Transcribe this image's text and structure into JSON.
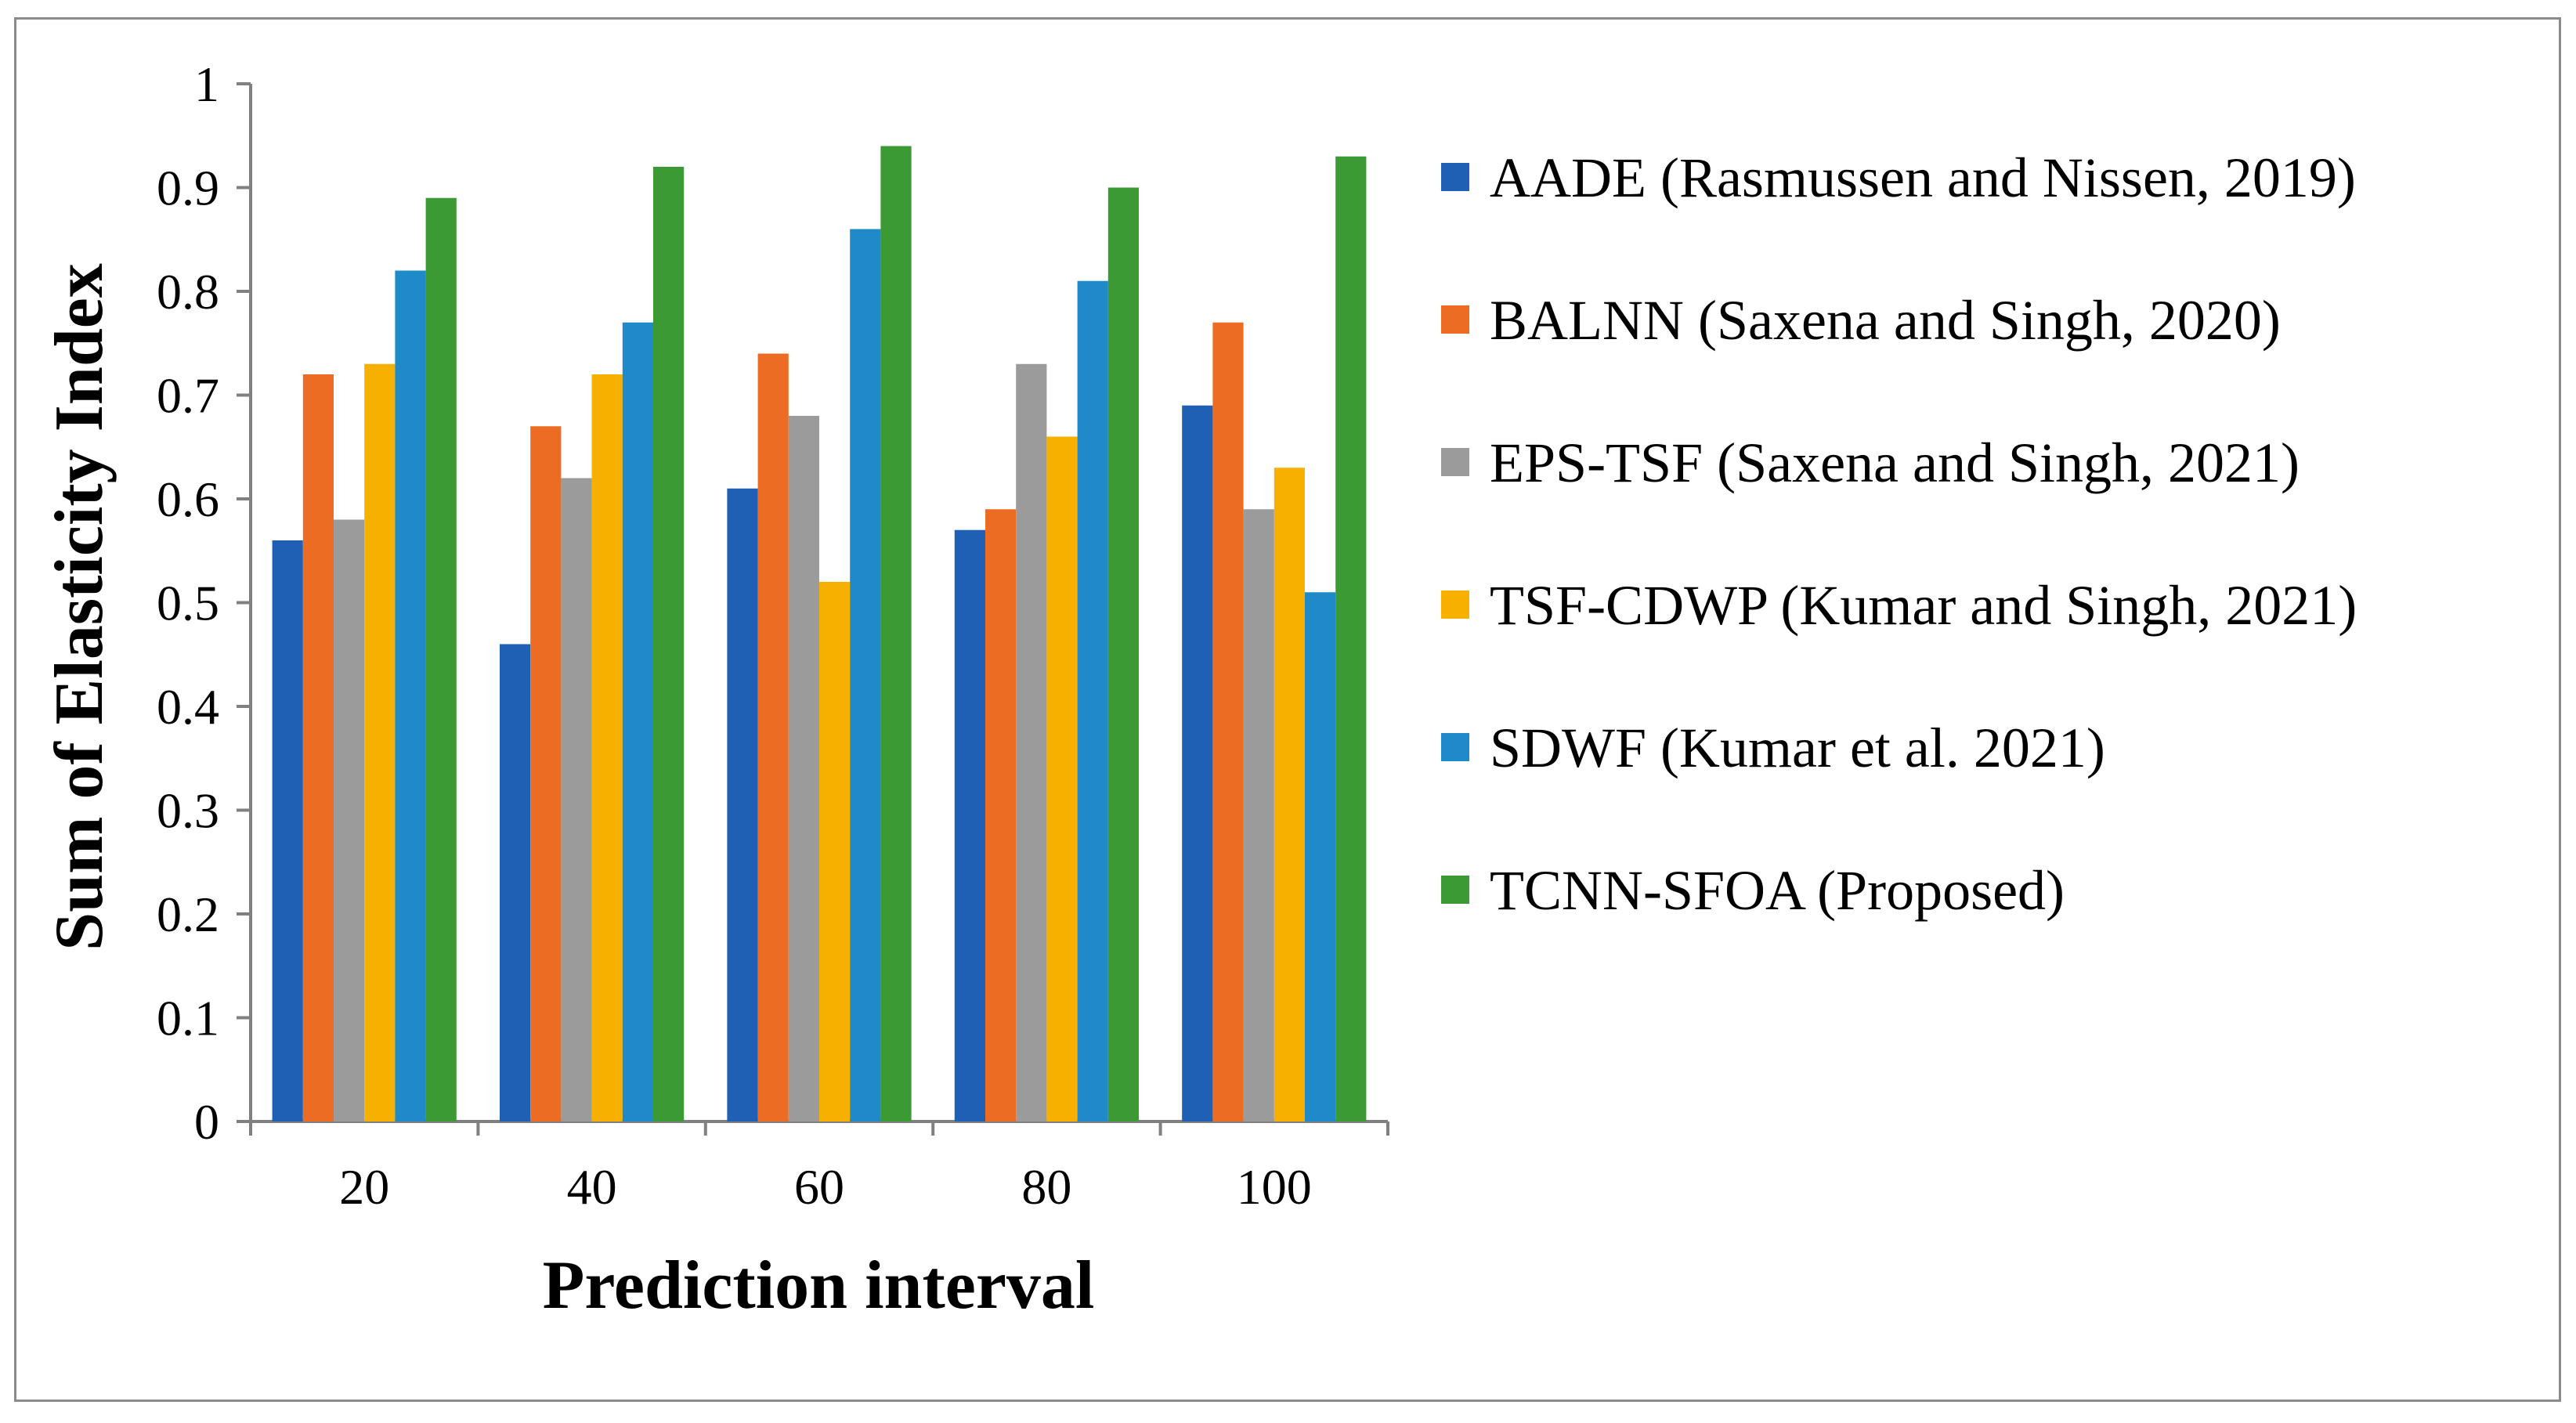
{
  "chart_data": {
    "type": "bar",
    "title": "",
    "xlabel": "Prediction interval",
    "ylabel": "Sum of Elasticity Index",
    "categories": [
      "20",
      "40",
      "60",
      "80",
      "100"
    ],
    "ylim": [
      0,
      1
    ],
    "yticks": [
      "0",
      "0.1",
      "0.2",
      "0.3",
      "0.4",
      "0.5",
      "0.6",
      "0.7",
      "0.8",
      "0.9",
      "1"
    ],
    "grid": false,
    "legend_position": "right",
    "series": [
      {
        "name": "AADE (Rasmussen and Nissen, 2019)",
        "color": "#1f5fb4",
        "values": [
          0.56,
          0.46,
          0.61,
          0.57,
          0.69
        ]
      },
      {
        "name": "BALNN (Saxena and Singh, 2020)",
        "color": "#ed6c23",
        "values": [
          0.72,
          0.67,
          0.74,
          0.59,
          0.77
        ]
      },
      {
        "name": "EPS-TSF (Saxena and Singh, 2021)",
        "color": "#9b9b9b",
        "values": [
          0.58,
          0.62,
          0.68,
          0.73,
          0.59
        ]
      },
      {
        "name": "TSF-CDWP (Kumar and Singh, 2021)",
        "color": "#f6b000",
        "values": [
          0.73,
          0.72,
          0.52,
          0.66,
          0.63
        ]
      },
      {
        "name": "SDWF (Kumar et al. 2021)",
        "color": "#1f8ac8",
        "values": [
          0.82,
          0.77,
          0.86,
          0.81,
          0.51
        ]
      },
      {
        "name": "TCNN-SFOA (Proposed)",
        "color": "#3b9a33",
        "values": [
          0.89,
          0.92,
          0.94,
          0.9,
          0.93
        ]
      }
    ]
  }
}
